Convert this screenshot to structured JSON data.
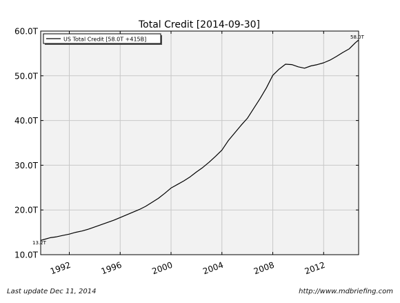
{
  "chart_data": {
    "type": "line",
    "title": "Total Credit  [2014-09-30]",
    "xlabel": "",
    "ylabel": "",
    "xlim": [
      1989.75,
      2014.75
    ],
    "ylim": [
      10,
      60
    ],
    "x_ticks": [
      1992,
      1996,
      2000,
      2004,
      2008,
      2012
    ],
    "x_tick_labels": [
      "1992",
      "1996",
      "2000",
      "2004",
      "2008",
      "2012"
    ],
    "y_ticks": [
      10,
      20,
      30,
      40,
      50,
      60
    ],
    "y_tick_labels": [
      "10.0T",
      "20.0T",
      "30.0T",
      "40.0T",
      "50.0T",
      "60.0T"
    ],
    "grid": true,
    "legend": {
      "position": "top-left",
      "entries": [
        "US Total Credit [58.0T +415B]"
      ]
    },
    "annotations": {
      "start_label": "13.2T",
      "end_label": "58.0T"
    },
    "series": [
      {
        "name": "US Total Credit [58.0T +415B]",
        "color": "#000000",
        "x": [
          1989.75,
          1990.0,
          1990.5,
          1991.0,
          1991.5,
          1992.0,
          1992.5,
          1993.0,
          1993.5,
          1994.0,
          1994.5,
          1995.0,
          1995.5,
          1996.0,
          1996.5,
          1997.0,
          1997.5,
          1998.0,
          1998.5,
          1999.0,
          1999.5,
          2000.0,
          2000.5,
          2001.0,
          2001.5,
          2002.0,
          2002.5,
          2003.0,
          2003.5,
          2004.0,
          2004.5,
          2005.0,
          2005.5,
          2006.0,
          2006.5,
          2007.0,
          2007.5,
          2008.0,
          2008.5,
          2009.0,
          2009.5,
          2010.0,
          2010.5,
          2011.0,
          2011.5,
          2012.0,
          2012.5,
          2013.0,
          2013.5,
          2014.0,
          2014.5,
          2014.75
        ],
        "values": [
          13.2,
          13.4,
          13.8,
          14.0,
          14.3,
          14.6,
          15.0,
          15.3,
          15.7,
          16.2,
          16.7,
          17.2,
          17.7,
          18.3,
          18.9,
          19.5,
          20.1,
          20.8,
          21.7,
          22.6,
          23.7,
          24.9,
          25.7,
          26.5,
          27.4,
          28.5,
          29.5,
          30.7,
          32.0,
          33.4,
          35.5,
          37.2,
          38.9,
          40.5,
          42.7,
          44.9,
          47.3,
          50.1,
          51.5,
          52.6,
          52.5,
          52.0,
          51.7,
          52.2,
          52.5,
          52.9,
          53.5,
          54.3,
          55.2,
          56.0,
          57.4,
          58.0
        ]
      }
    ]
  },
  "footer": {
    "last_update": "Last update Dec 11, 2014",
    "source_url": "http://www.mdbriefing.com"
  }
}
